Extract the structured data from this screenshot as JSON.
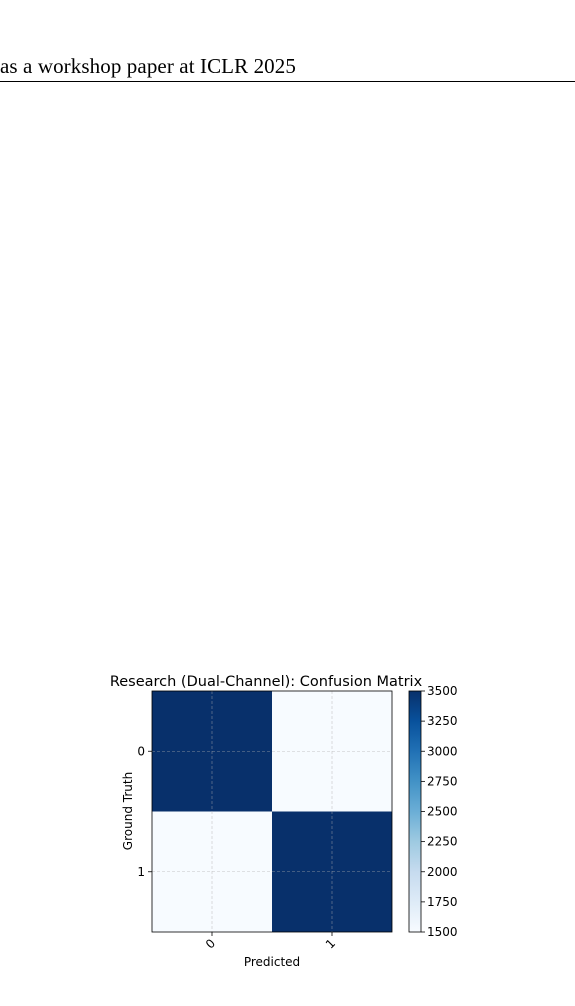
{
  "header": {
    "text": "as a workshop paper at ICLR 2025"
  },
  "chart_data": {
    "type": "heatmap",
    "title": "Research (Dual-Channel): Confusion Matrix",
    "xlabel": "Predicted",
    "ylabel": "Ground Truth",
    "x_categories": [
      "0",
      "1"
    ],
    "y_categories": [
      "0",
      "1"
    ],
    "values": [
      [
        3500,
        1500
      ],
      [
        1500,
        3500
      ]
    ],
    "colormap": "Blues",
    "colorbar": {
      "min": 1500,
      "max": 3500,
      "ticks": [
        "3500",
        "3250",
        "3000",
        "2750",
        "2500",
        "2250",
        "2000",
        "1750",
        "1500"
      ]
    },
    "grid": true
  }
}
